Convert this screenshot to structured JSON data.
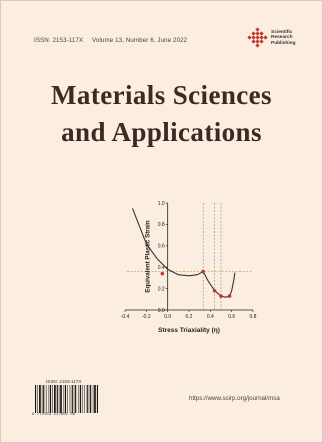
{
  "cover": {
    "issn": "ISSN: 2153-117X",
    "volume_info": "Volume 13, Number 6, June 2022",
    "publisher_lines": [
      "Scientific",
      "Research",
      "Publishing"
    ],
    "title_line1": "Materials Sciences",
    "title_line2": "and Applications",
    "barcode_label": "ISSN: 2153-117X",
    "barcode_digits": "9 772153 117002   06",
    "url": "https://www.scirp.org/journal/msa"
  },
  "chart_data": {
    "type": "line",
    "xlabel": "Stress Triaxiality (η)",
    "ylabel": "Equivalent Plastic Strain",
    "xlim": [
      -0.4,
      0.8
    ],
    "ylim": [
      0.0,
      1.0
    ],
    "xticks": [
      "-0.4",
      "-0.2",
      "0.0",
      "0.2",
      "0.4",
      "0.6",
      "0.8"
    ],
    "yticks": [
      "0.0",
      "0.2",
      "0.4",
      "0.6",
      "0.8",
      "1.0"
    ],
    "series": [
      {
        "x": [
          -0.33,
          -0.2,
          -0.1,
          0.0,
          0.1,
          0.2,
          0.28,
          0.333,
          0.38,
          0.44,
          0.5,
          0.54,
          0.58,
          0.6,
          0.62,
          0.63
        ],
        "y": [
          0.95,
          0.62,
          0.48,
          0.38,
          0.33,
          0.32,
          0.33,
          0.36,
          0.27,
          0.18,
          0.13,
          0.12,
          0.13,
          0.18,
          0.28,
          0.35
        ]
      }
    ],
    "highlight_points": [
      {
        "x": -0.05,
        "y": 0.34
      },
      {
        "x": 0.333,
        "y": 0.36
      },
      {
        "x": 0.44,
        "y": 0.18
      },
      {
        "x": 0.5,
        "y": 0.13
      },
      {
        "x": 0.58,
        "y": 0.13
      }
    ],
    "vertical_guides": [
      0.333,
      0.44,
      0.5
    ],
    "horizontal_guide": 0.36,
    "colors": {
      "curve": "#333333",
      "points": "#c0392b",
      "guide": "#b8b060",
      "vguide": "#888888"
    }
  }
}
